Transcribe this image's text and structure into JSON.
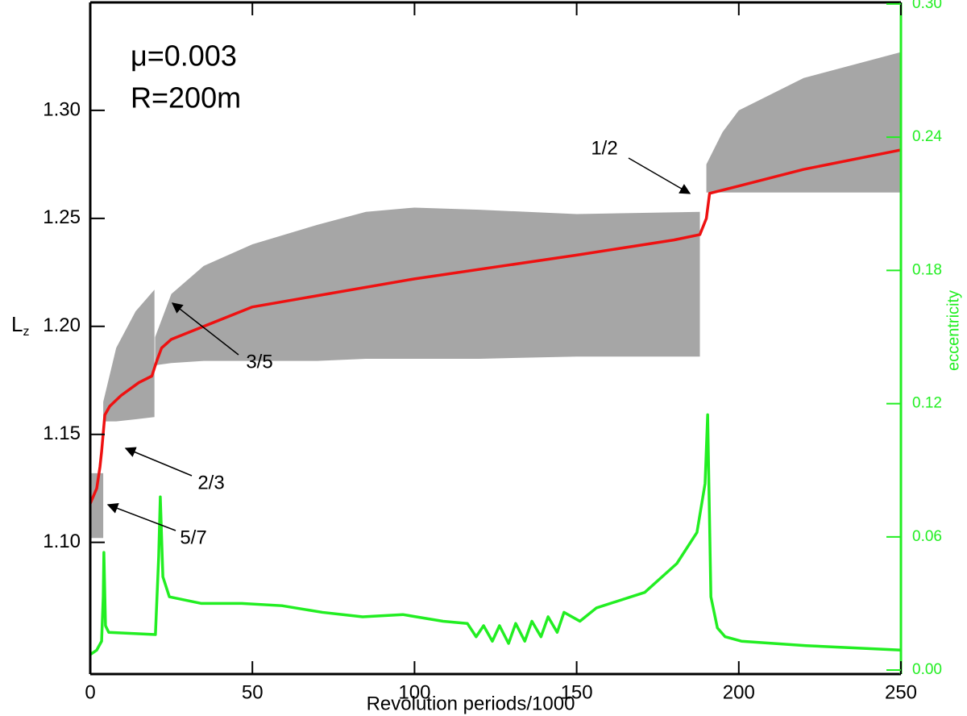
{
  "chart_data": {
    "type": "line",
    "xlabel": "Revolution periods/1000",
    "ylabel": "L",
    "ylabel_sub": "z",
    "y2label": "eccentricity",
    "annotations": [
      "μ=0.003",
      "R=200m",
      "1/2",
      "3/5",
      "2/3",
      "5/7"
    ],
    "xlim": [
      0,
      250
    ],
    "xticks": [
      0,
      50,
      100,
      150,
      200,
      250
    ],
    "ylim": [
      1.039,
      1.35
    ],
    "yticks": [
      {
        "value": 1.1,
        "label": "1.10"
      },
      1.15,
      {
        "value": 1.2,
        "label": "1.20"
      },
      1.25,
      {
        "value": 1.3,
        "label": "1.30"
      }
    ],
    "y2lim": [
      -0.0018,
      0.3007
    ],
    "y2ticks": [
      {
        "value": 0,
        "label": "0.00"
      },
      {
        "value": 0.06,
        "label": "0.06"
      },
      {
        "value": 0.12,
        "label": "0.12"
      },
      {
        "value": 0.18,
        "label": "0.18"
      },
      {
        "value": 0.24,
        "label": "0.24"
      },
      {
        "value": 0.3,
        "label": "0.30"
      }
    ],
    "y2color": "#22ee22",
    "regions": [
      {
        "color": "#6a6a6a",
        "x": [
          0,
          4
        ],
        "low": [
          1.102,
          1.102
        ],
        "high": [
          1.132,
          1.132
        ]
      },
      {
        "color": "#6a6a6a",
        "x": [
          4,
          8,
          14,
          19.8
        ],
        "low": [
          1.156,
          1.156,
          1.157,
          1.158
        ],
        "high": [
          1.165,
          1.19,
          1.207,
          1.217
        ]
      },
      {
        "color": "#6a6a6a",
        "x": [
          20,
          25,
          35,
          50,
          70,
          85,
          100,
          120,
          150,
          188
        ],
        "low": [
          1.182,
          1.183,
          1.184,
          1.184,
          1.184,
          1.185,
          1.185,
          1.185,
          1.186,
          1.186
        ],
        "high": [
          1.195,
          1.215,
          1.228,
          1.238,
          1.247,
          1.253,
          1.255,
          1.254,
          1.252,
          1.253
        ]
      },
      {
        "color": "#6a6a6a",
        "x": [
          190,
          195,
          200,
          220,
          250
        ],
        "low": [
          1.262,
          1.262,
          1.262,
          1.262,
          1.262
        ],
        "high": [
          1.275,
          1.29,
          1.3,
          1.315,
          1.327
        ]
      }
    ],
    "series": [
      {
        "name": "Lz",
        "color": "#ee1111",
        "x": [
          0,
          2,
          3,
          3.5,
          4.5,
          6,
          9.5,
          15,
          19,
          20.5,
          22,
          25,
          50,
          100,
          150,
          180,
          188,
          190,
          191,
          200,
          220,
          250
        ],
        "values": [
          1.118,
          1.125,
          1.135,
          1.142,
          1.159,
          1.163,
          1.168,
          1.174,
          1.177,
          1.184,
          1.19,
          1.194,
          1.209,
          1.222,
          1.233,
          1.24,
          1.2425,
          1.25,
          1.2616,
          1.265,
          1.2727,
          1.2817
        ]
      },
      {
        "name": "eccentricity",
        "color": "#22ee22",
        "axis": "y2",
        "x": [
          0,
          2,
          3.5,
          4,
          4.2,
          4.7,
          5.7,
          20.1,
          21.1,
          21.6,
          22.4,
          24.4,
          34.3,
          46.7,
          59.1,
          71.6,
          84,
          96.4,
          108.8,
          116.3,
          119,
          121.3,
          124,
          126.2,
          129,
          131.2,
          134,
          136.2,
          139,
          141.2,
          144,
          146.1,
          151,
          156.1,
          171,
          180.9,
          187.1,
          189.6,
          190.4,
          191.4,
          193.4,
          195.8,
          200.8,
          220.7,
          250
        ],
        "values": [
          0.007,
          0.009,
          0.013,
          0.033,
          0.053,
          0.02,
          0.017,
          0.016,
          0.051,
          0.078,
          0.042,
          0.033,
          0.03,
          0.03,
          0.029,
          0.026,
          0.024,
          0.025,
          0.022,
          0.021,
          0.015,
          0.02,
          0.013,
          0.02,
          0.012,
          0.021,
          0.013,
          0.022,
          0.015,
          0.024,
          0.017,
          0.026,
          0.022,
          0.028,
          0.035,
          0.048,
          0.062,
          0.084,
          0.115,
          0.033,
          0.019,
          0.015,
          0.013,
          0.011,
          0.009
        ]
      }
    ]
  }
}
